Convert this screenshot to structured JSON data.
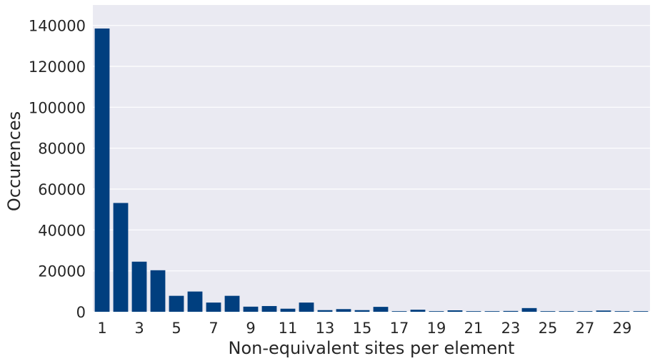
{
  "chart_data": {
    "type": "bar",
    "xlabel": "Non-equivalent sites per element",
    "ylabel": "Occurences",
    "categories": [
      1,
      2,
      3,
      4,
      5,
      6,
      7,
      8,
      9,
      10,
      11,
      12,
      13,
      14,
      15,
      16,
      17,
      18,
      19,
      20,
      21,
      22,
      23,
      24,
      25,
      26,
      27,
      28,
      29,
      30
    ],
    "x_tick_labels": [
      "1",
      "3",
      "5",
      "7",
      "9",
      "11",
      "13",
      "15",
      "17",
      "19",
      "21",
      "23",
      "25",
      "27",
      "29"
    ],
    "values": [
      138500,
      53200,
      24500,
      20300,
      7800,
      9900,
      4500,
      7800,
      2500,
      2800,
      1500,
      4500,
      800,
      1300,
      800,
      2400,
      300,
      1000,
      300,
      700,
      300,
      300,
      400,
      1800,
      300,
      300,
      300,
      600,
      300,
      300
    ],
    "ylim": [
      0,
      150000
    ],
    "y_ticks": [
      0,
      20000,
      40000,
      60000,
      80000,
      100000,
      120000,
      140000
    ],
    "bar_color": "#003f7f",
    "background_color": "#eaeaf2",
    "grid": true
  }
}
